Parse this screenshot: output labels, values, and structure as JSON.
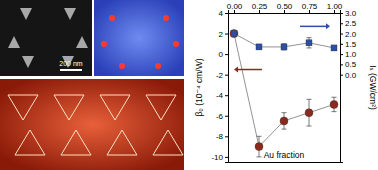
{
  "chart_data": {
    "type": "scatter",
    "x_label": "Au fraction",
    "y_label": "β₀ (10⁻⁴ cm/W)",
    "y2_label": "Iₛ (GW/cm²)",
    "xlim": [
      -0.06,
      1.06
    ],
    "xticks": [
      {
        "value": 0,
        "label": "0.00"
      },
      {
        "value": 0.25,
        "label": "0.25"
      },
      {
        "value": 0.5,
        "label": "0.50"
      },
      {
        "value": 0.75,
        "label": "0.75"
      },
      {
        "value": 1,
        "label": "1.00"
      }
    ],
    "ylim": [
      -10.5,
      4
    ],
    "yticks": [
      -10,
      -8,
      -6,
      -4,
      -2,
      0,
      2,
      4
    ],
    "y2lim": [
      -4.25,
      3
    ],
    "y2ticks": [
      {
        "value": 0,
        "label": "0.0"
      },
      {
        "value": 0.5,
        "label": "0.5"
      },
      {
        "value": 1,
        "label": "1.0"
      },
      {
        "value": 1.5,
        "label": "1.5"
      },
      {
        "value": 2,
        "label": "2.0"
      },
      {
        "value": 2.5,
        "label": "2.5"
      },
      {
        "value": 3,
        "label": "3.0"
      }
    ],
    "x": [
      0,
      0.25,
      0.5,
      0.75,
      1
    ],
    "series": [
      {
        "name": "β₀",
        "color": "#8b2a1c",
        "marker": "circle",
        "line_style": "solid",
        "values": [
          2.0,
          -9.0,
          -6.5,
          -5.7,
          -4.9
        ],
        "errors": [
          0.3,
          1.0,
          0.8,
          1.3,
          0.7
        ]
      },
      {
        "name": "Iₛ",
        "color": "#2b4fa8",
        "marker": "square",
        "line_style": "solid",
        "axis": "y2",
        "values": [
          2.0,
          1.35,
          1.35,
          1.55,
          1.3
        ],
        "errors": [
          0.15,
          0.12,
          0.15,
          0.25,
          0.12
        ]
      }
    ]
  },
  "panel": {
    "scale_bar": "200 nm"
  }
}
